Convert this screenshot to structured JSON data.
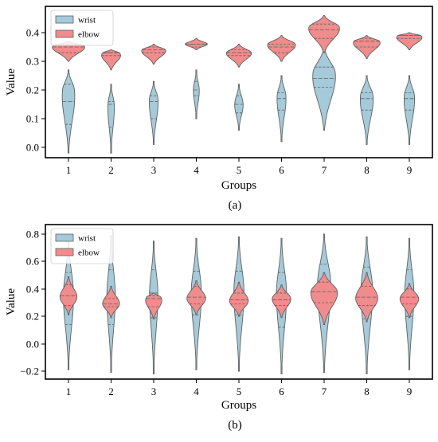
{
  "figure": {
    "captions": [
      "(a)",
      "(b)"
    ]
  },
  "colors": {
    "wrist": "#a5cad9",
    "elbow": "#f08c8c",
    "edge": "#606060"
  },
  "chart_data": [
    {
      "type": "violin",
      "panel": "(a)",
      "xlabel": "Groups",
      "ylabel": "Value",
      "categories": [
        "1",
        "2",
        "3",
        "4",
        "5",
        "6",
        "7",
        "8",
        "9"
      ],
      "yticks": [
        "0.0",
        "0.1",
        "0.2",
        "0.3",
        "0.4"
      ],
      "ylim": [
        -0.04,
        0.46
      ],
      "grid": false,
      "legend_position": "top-left",
      "series": [
        {
          "name": "wrist",
          "color": "#a5cad9",
          "min": [
            -0.02,
            -0.02,
            0.01,
            0.1,
            0.06,
            0.02,
            0.06,
            0.01,
            0.01
          ],
          "max": [
            0.27,
            0.22,
            0.23,
            0.27,
            0.22,
            0.25,
            0.35,
            0.25,
            0.25
          ],
          "q1": [
            0.08,
            0.07,
            0.1,
            0.18,
            0.12,
            0.13,
            0.21,
            0.13,
            0.13
          ],
          "median": [
            0.16,
            0.15,
            0.16,
            0.2,
            0.15,
            0.17,
            0.24,
            0.17,
            0.17
          ],
          "q3": [
            0.22,
            0.16,
            0.18,
            0.23,
            0.18,
            0.19,
            0.28,
            0.19,
            0.19
          ],
          "mode": [
            0.2,
            0.15,
            0.17,
            0.2,
            0.15,
            0.18,
            0.26,
            0.18,
            0.18
          ],
          "max_half_width": [
            0.16,
            0.08,
            0.11,
            0.07,
            0.1,
            0.11,
            0.28,
            0.16,
            0.13
          ]
        },
        {
          "name": "elbow",
          "color": "#f08c8c",
          "min": [
            0.3,
            0.27,
            0.29,
            0.34,
            0.28,
            0.3,
            0.33,
            0.31,
            0.34
          ],
          "max": [
            0.37,
            0.34,
            0.36,
            0.38,
            0.36,
            0.39,
            0.46,
            0.39,
            0.4
          ],
          "q1": [
            0.33,
            0.32,
            0.33,
            0.35,
            0.32,
            0.33,
            0.38,
            0.35,
            0.38
          ],
          "median": [
            0.35,
            0.33,
            0.34,
            0.36,
            0.33,
            0.35,
            0.41,
            0.37,
            0.39
          ],
          "q3": [
            0.36,
            0.33,
            0.35,
            0.36,
            0.34,
            0.36,
            0.43,
            0.38,
            0.39
          ],
          "mode": [
            0.355,
            0.33,
            0.34,
            0.36,
            0.33,
            0.36,
            0.42,
            0.37,
            0.39
          ],
          "max_half_width": [
            0.42,
            0.26,
            0.3,
            0.26,
            0.3,
            0.34,
            0.38,
            0.34,
            0.34
          ]
        }
      ]
    },
    {
      "type": "violin",
      "panel": "(b)",
      "xlabel": "Groups",
      "ylabel": "Value",
      "categories": [
        "1",
        "2",
        "3",
        "4",
        "5",
        "6",
        "7",
        "8",
        "9"
      ],
      "yticks": [
        "−0.2",
        "0.0",
        "0.2",
        "0.4",
        "0.6",
        "0.8"
      ],
      "ylim": [
        -0.25,
        0.82
      ],
      "grid": false,
      "legend_position": "top-left",
      "series": [
        {
          "name": "wrist",
          "color": "#a5cad9",
          "min": [
            -0.19,
            -0.21,
            -0.22,
            -0.19,
            -0.2,
            -0.22,
            -0.21,
            -0.22,
            -0.19
          ],
          "max": [
            0.76,
            0.79,
            0.75,
            0.77,
            0.78,
            0.77,
            0.8,
            0.78,
            0.77
          ],
          "q1": [
            0.14,
            0.14,
            0.19,
            0.21,
            0.21,
            0.12,
            0.27,
            0.18,
            0.2
          ],
          "median": [
            0.36,
            0.35,
            0.37,
            0.38,
            0.39,
            0.38,
            0.4,
            0.4,
            0.37
          ],
          "q3": [
            0.52,
            0.54,
            0.54,
            0.53,
            0.53,
            0.52,
            0.58,
            0.56,
            0.54
          ],
          "mode": [
            0.36,
            0.35,
            0.37,
            0.38,
            0.39,
            0.38,
            0.45,
            0.4,
            0.37
          ],
          "max_half_width": [
            0.12,
            0.1,
            0.1,
            0.12,
            0.12,
            0.12,
            0.16,
            0.14,
            0.11
          ]
        },
        {
          "name": "elbow",
          "color": "#f08c8c",
          "min": [
            0.21,
            0.19,
            0.18,
            0.21,
            0.2,
            0.19,
            0.14,
            0.16,
            0.19
          ],
          "max": [
            0.49,
            0.42,
            0.37,
            0.46,
            0.45,
            0.43,
            0.52,
            0.52,
            0.44
          ],
          "q1": [
            0.28,
            0.27,
            0.27,
            0.29,
            0.29,
            0.28,
            0.3,
            0.28,
            0.29
          ],
          "median": [
            0.35,
            0.29,
            0.33,
            0.34,
            0.32,
            0.32,
            0.38,
            0.34,
            0.34
          ],
          "q3": [
            0.43,
            0.33,
            0.35,
            0.42,
            0.37,
            0.37,
            0.45,
            0.42,
            0.4
          ],
          "mode": [
            0.34,
            0.29,
            0.34,
            0.33,
            0.31,
            0.33,
            0.38,
            0.33,
            0.33
          ],
          "max_half_width": [
            0.2,
            0.2,
            0.22,
            0.22,
            0.22,
            0.22,
            0.32,
            0.26,
            0.22
          ]
        }
      ]
    }
  ]
}
